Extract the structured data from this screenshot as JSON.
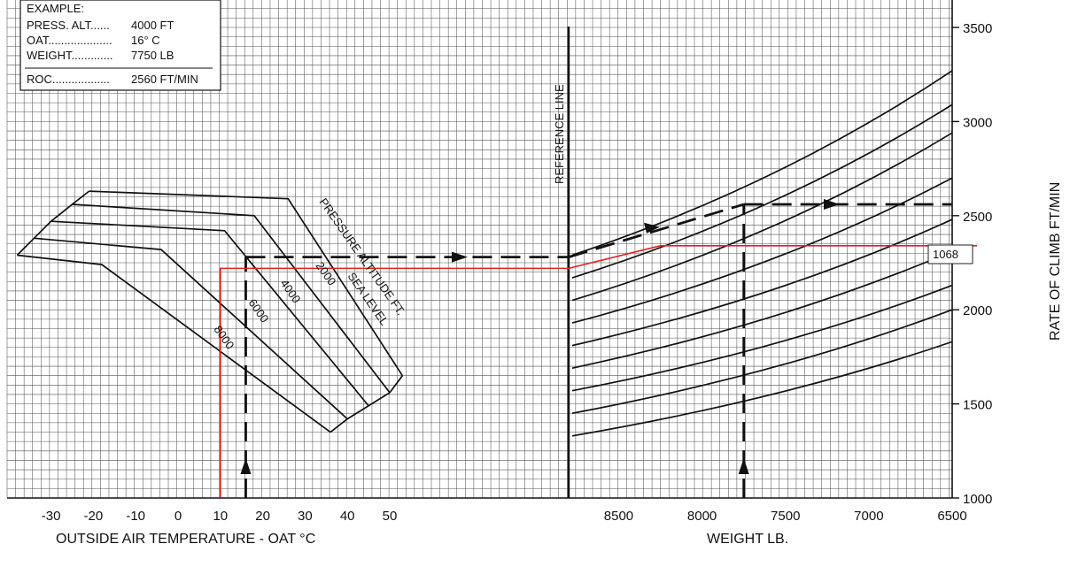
{
  "chart_data": {
    "type": "line",
    "left_panel": {
      "xlabel": "OUTSIDE AIR TEMPERATURE - OAT °C",
      "x_ticks": [
        -30,
        -20,
        -10,
        0,
        10,
        20,
        30,
        40,
        50
      ],
      "xlim": [
        -40,
        55
      ],
      "family_label": "PRESSURE ALTITUDE FT.",
      "curves": [
        {
          "name": "SEA LEVEL",
          "points": [
            [
              -21,
              2630
            ],
            [
              26,
              2590
            ],
            [
              53,
              1650
            ]
          ]
        },
        {
          "name": "2000",
          "points": [
            [
              -25,
              2560
            ],
            [
              18,
              2500
            ],
            [
              50,
              1560
            ]
          ]
        },
        {
          "name": "4000",
          "points": [
            [
              -30,
              2470
            ],
            [
              11,
              2420
            ],
            [
              45,
              1490
            ]
          ]
        },
        {
          "name": "6000",
          "points": [
            [
              -34,
              2380
            ],
            [
              -4,
              2320
            ],
            [
              40,
              1420
            ]
          ]
        },
        {
          "name": "8000",
          "points": [
            [
              -38,
              2290
            ],
            [
              -18,
              2240
            ],
            [
              36,
              1350
            ]
          ]
        }
      ],
      "envelope_bottom": [
        [
          36,
          1350
        ],
        [
          53,
          1650
        ]
      ]
    },
    "right_panel": {
      "xlabel": "WEIGHT LB.",
      "x_ticks": [
        8500,
        8000,
        7500,
        7000,
        6500
      ],
      "xlim": [
        8800,
        6500
      ],
      "ylabel": "RATE OF CLIMB FT/MIN",
      "y_ticks": [
        1000,
        1500,
        2000,
        2500,
        3000,
        3500
      ],
      "ylim": [
        1000,
        3500
      ],
      "reference_label": "REFERENCE LINE",
      "guide_lines": [
        [
          2290,
          3270
        ],
        [
          2170,
          3090
        ],
        [
          2050,
          2940
        ],
        [
          1930,
          2700
        ],
        [
          1810,
          2480
        ],
        [
          1690,
          2310
        ],
        [
          1570,
          2130
        ],
        [
          1450,
          2000
        ],
        [
          1330,
          1830
        ]
      ]
    },
    "example": {
      "title": "EXAMPLE:",
      "rows": [
        {
          "label": "PRESS. ALT......",
          "value": "4000 FT"
        },
        {
          "label": "OAT....................",
          "value": "16° C"
        },
        {
          "label": "WEIGHT.............",
          "value": "7750 LB"
        }
      ],
      "result": {
        "label": "ROC..................",
        "value": "2560 FT/MIN"
      },
      "path": {
        "oat": 16,
        "reference_roc": 2280,
        "weight": 7750,
        "roc": 2560
      }
    },
    "red_overlay": {
      "oat": 10,
      "reference_roc": 2220,
      "roc": 2340,
      "break_weight": 8250,
      "label": "1068",
      "color": "#e02020"
    }
  }
}
